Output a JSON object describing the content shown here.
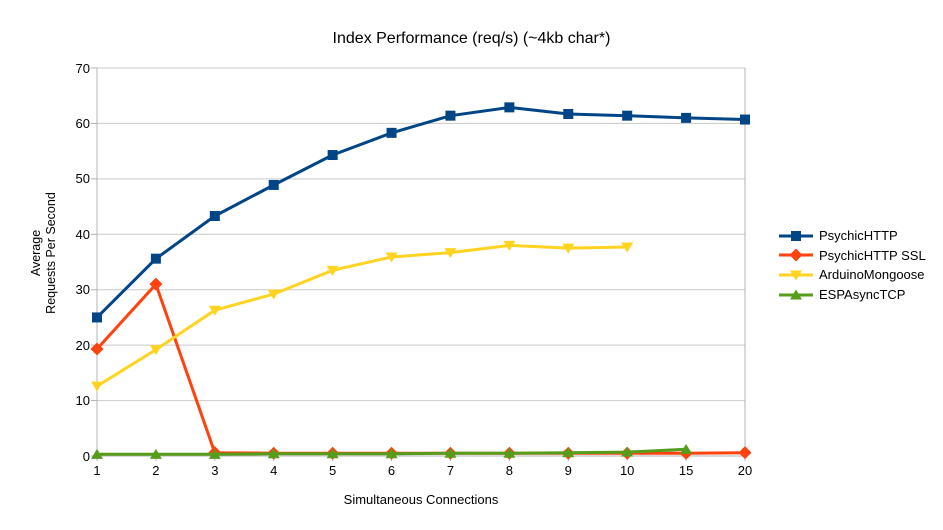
{
  "chart_data": {
    "type": "line",
    "title": "Index Performance (req/s) (~4kb char*)",
    "xlabel": "Simultaneous Connections",
    "ylabel": "Average Requests Per Second",
    "ylabel_line1": "Average",
    "ylabel_line2": "Requests Per Second",
    "categories": [
      "1",
      "2",
      "3",
      "4",
      "5",
      "6",
      "7",
      "8",
      "9",
      "10",
      "15",
      "20"
    ],
    "yticks": [
      0,
      10,
      20,
      30,
      40,
      50,
      60,
      70
    ],
    "ylim": [
      0,
      70
    ],
    "grid": "horizontal",
    "legend_position": "right",
    "series": [
      {
        "name": "PsychicHTTP",
        "color": "#004586",
        "marker": "square",
        "values": [
          25.0,
          35.6,
          43.3,
          48.9,
          54.3,
          58.3,
          61.4,
          62.9,
          61.7,
          61.4,
          61.0,
          60.7
        ]
      },
      {
        "name": "PsychicHTTP SSL",
        "color": "#FF420E",
        "marker": "diamond",
        "values": [
          19.3,
          31.0,
          0.6,
          0.5,
          0.5,
          0.5,
          0.5,
          0.5,
          0.5,
          0.5,
          0.5,
          0.6
        ]
      },
      {
        "name": "ArduinoMongoose",
        "color": "#FFD320",
        "marker": "triangle-down",
        "values": [
          12.6,
          19.2,
          26.3,
          29.2,
          33.5,
          35.9,
          36.7,
          38.0,
          37.5,
          37.7,
          null,
          null
        ]
      },
      {
        "name": "ESPAsyncTCP",
        "color": "#579D1C",
        "marker": "triangle-up",
        "values": [
          0.3,
          0.3,
          0.3,
          0.4,
          0.4,
          0.4,
          0.5,
          0.5,
          0.6,
          0.7,
          1.2,
          null
        ]
      }
    ],
    "colors": {
      "background": "#ffffff",
      "gridline": "#c9c9c9",
      "axis": "#b3b3b3",
      "text": "#000000"
    }
  }
}
